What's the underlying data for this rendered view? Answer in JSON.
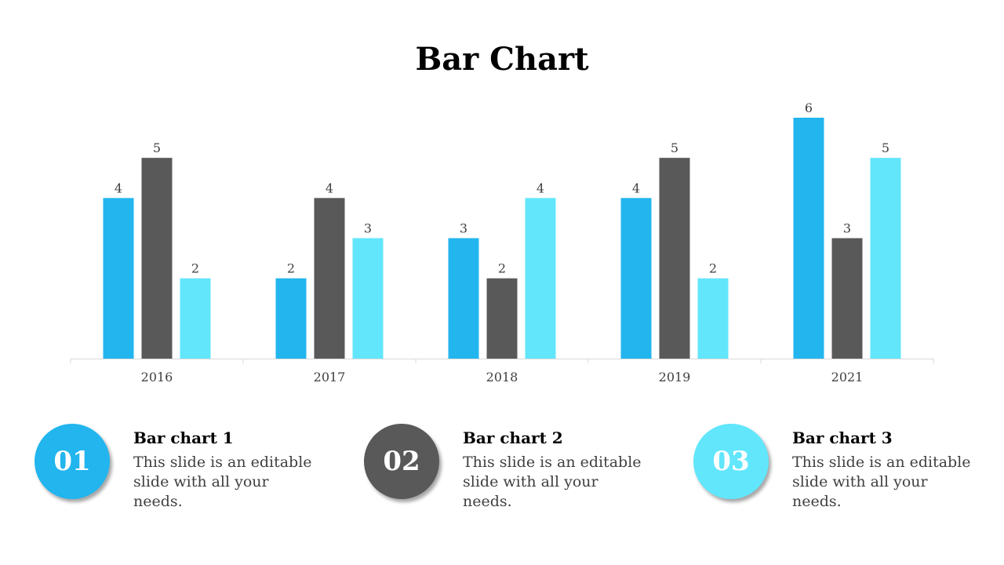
{
  "chart_data": {
    "type": "bar",
    "title": "Bar Chart",
    "categories": [
      "2016",
      "2017",
      "2018",
      "2019",
      "2021"
    ],
    "series": [
      {
        "color": "#22b5ee",
        "values": [
          4,
          2,
          3,
          4,
          6
        ]
      },
      {
        "color": "#595959",
        "values": [
          5,
          4,
          2,
          5,
          3
        ]
      },
      {
        "color": "#62e6fc",
        "values": [
          2,
          3,
          4,
          2,
          5
        ]
      }
    ],
    "ylim": [
      0,
      6
    ],
    "grid": false,
    "data_labels": true
  },
  "cards": [
    {
      "number": "01",
      "title": "Bar chart 1",
      "text": "This slide is an editable slide with all your needs.",
      "color": "#22b5ee"
    },
    {
      "number": "02",
      "title": "Bar chart 2",
      "text": "This slide is an editable slide with all your needs.",
      "color": "#595959"
    },
    {
      "number": "03",
      "title": "Bar chart 3",
      "text": "This slide is an editable slide with all your needs.",
      "color": "#62e6fc"
    }
  ]
}
